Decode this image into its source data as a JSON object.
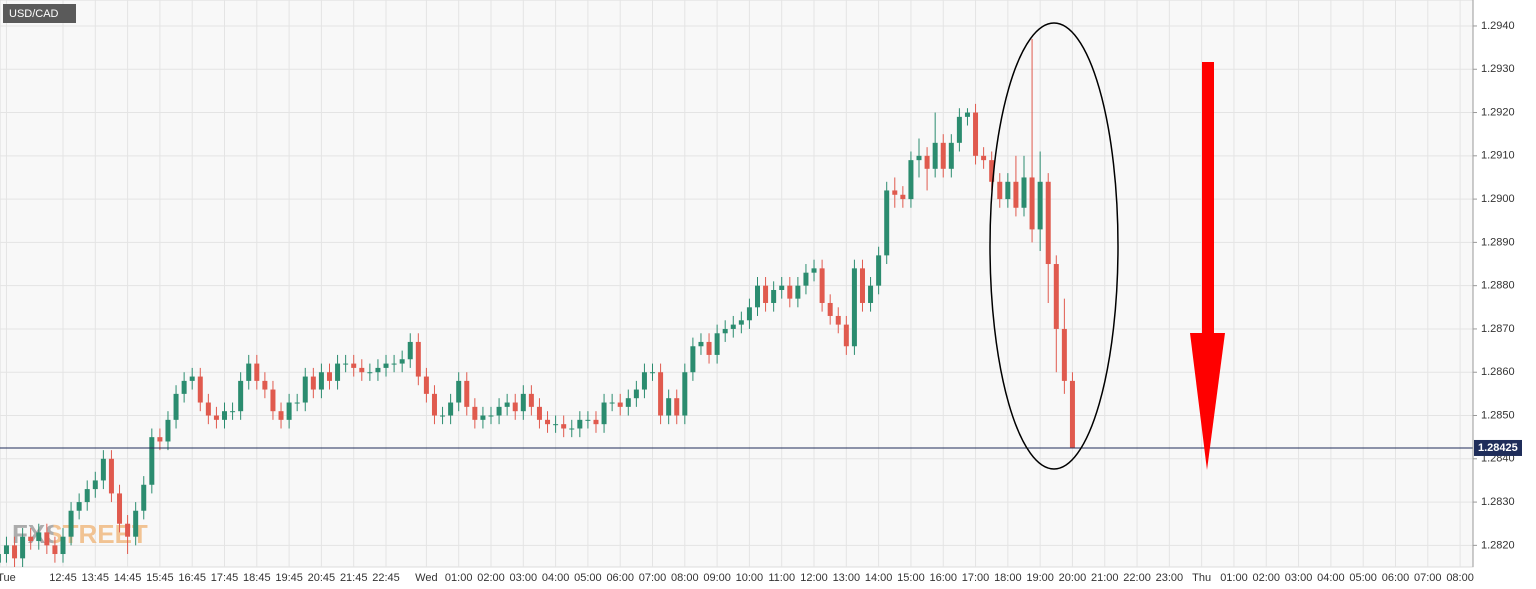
{
  "chart_data": {
    "type": "candlestick",
    "title": "USD/CAD",
    "watermark": "FXSTREET",
    "last_price": 1.28425,
    "up_color": "#2b8c6f",
    "down_color": "#e05a4e",
    "grid": true,
    "xlim": [
      -13.2,
      32.4
    ],
    "ylim": [
      1.2815,
      1.2946
    ],
    "yticks": [
      {
        "value": 1.282,
        "label": "1.2820"
      },
      {
        "value": 1.283,
        "label": "1.2830"
      },
      {
        "value": 1.284,
        "label": "1.2840"
      },
      {
        "value": 1.285,
        "label": "1.2850"
      },
      {
        "value": 1.286,
        "label": "1.2860"
      },
      {
        "value": 1.287,
        "label": "1.2870"
      },
      {
        "value": 1.288,
        "label": "1.2880"
      },
      {
        "value": 1.289,
        "label": "1.2890"
      },
      {
        "value": 1.29,
        "label": "1.2900"
      },
      {
        "value": 1.291,
        "label": "1.2910"
      },
      {
        "value": 1.292,
        "label": "1.2920"
      },
      {
        "value": 1.293,
        "label": "1.2930"
      },
      {
        "value": 1.294,
        "label": "1.2940"
      }
    ],
    "xticks": [
      {
        "value": -13,
        "label": "Tue"
      },
      {
        "value": -11.25,
        "label": "12:45"
      },
      {
        "value": -10.25,
        "label": "13:45"
      },
      {
        "value": -9.25,
        "label": "14:45"
      },
      {
        "value": -8.25,
        "label": "15:45"
      },
      {
        "value": -7.25,
        "label": "16:45"
      },
      {
        "value": -6.25,
        "label": "17:45"
      },
      {
        "value": -5.25,
        "label": "18:45"
      },
      {
        "value": -4.25,
        "label": "19:45"
      },
      {
        "value": -3.25,
        "label": "20:45"
      },
      {
        "value": -2.25,
        "label": "21:45"
      },
      {
        "value": -1.25,
        "label": "22:45"
      },
      {
        "value": 0,
        "label": "Wed"
      },
      {
        "value": 1,
        "label": "01:00"
      },
      {
        "value": 2,
        "label": "02:00"
      },
      {
        "value": 3,
        "label": "03:00"
      },
      {
        "value": 4,
        "label": "04:00"
      },
      {
        "value": 5,
        "label": "05:00"
      },
      {
        "value": 6,
        "label": "06:00"
      },
      {
        "value": 7,
        "label": "07:00"
      },
      {
        "value": 8,
        "label": "08:00"
      },
      {
        "value": 9,
        "label": "09:00"
      },
      {
        "value": 10,
        "label": "10:00"
      },
      {
        "value": 11,
        "label": "11:00"
      },
      {
        "value": 12,
        "label": "12:00"
      },
      {
        "value": 13,
        "label": "13:00"
      },
      {
        "value": 14,
        "label": "14:00"
      },
      {
        "value": 15,
        "label": "15:00"
      },
      {
        "value": 16,
        "label": "16:00"
      },
      {
        "value": 17,
        "label": "17:00"
      },
      {
        "value": 18,
        "label": "18:00"
      },
      {
        "value": 19,
        "label": "19:00"
      },
      {
        "value": 20,
        "label": "20:00"
      },
      {
        "value": 21,
        "label": "21:00"
      },
      {
        "value": 22,
        "label": "22:00"
      },
      {
        "value": 23,
        "label": "23:00"
      },
      {
        "value": 24,
        "label": "Thu"
      },
      {
        "value": 25,
        "label": "01:00"
      },
      {
        "value": 26,
        "label": "02:00"
      },
      {
        "value": 27,
        "label": "03:00"
      },
      {
        "value": 28,
        "label": "04:00"
      },
      {
        "value": 29,
        "label": "05:00"
      },
      {
        "value": 30,
        "label": "06:00"
      },
      {
        "value": 31,
        "label": "07:00"
      },
      {
        "value": 32,
        "label": "08:00"
      }
    ],
    "x": [
      -13.25,
      -13,
      -12.75,
      -12.5,
      -12.25,
      -12,
      -11.75,
      -11.5,
      -11.25,
      -11,
      -10.75,
      -10.5,
      -10.25,
      -10,
      -9.75,
      -9.5,
      -9.25,
      -9,
      -8.75,
      -8.5,
      -8.25,
      -8,
      -7.75,
      -7.5,
      -7.25,
      -7,
      -6.75,
      -6.5,
      -6.25,
      -6,
      -5.75,
      -5.5,
      -5.25,
      -5,
      -4.75,
      -4.5,
      -4.25,
      -4,
      -3.75,
      -3.5,
      -3.25,
      -3,
      -2.75,
      -2.5,
      -2.25,
      -2,
      -1.75,
      -1.5,
      -1.25,
      -1,
      -0.75,
      -0.5,
      -0.25,
      0,
      0.25,
      0.5,
      0.75,
      1,
      1.25,
      1.5,
      1.75,
      2,
      2.25,
      2.5,
      2.75,
      3,
      3.25,
      3.5,
      3.75,
      4,
      4.25,
      4.5,
      4.75,
      5,
      5.25,
      5.5,
      5.75,
      6,
      6.25,
      6.5,
      6.75,
      7,
      7.25,
      7.5,
      7.75,
      8,
      8.25,
      8.5,
      8.75,
      9,
      9.25,
      9.5,
      9.75,
      10,
      10.25,
      10.5,
      10.75,
      11,
      11.25,
      11.5,
      11.75,
      12,
      12.25,
      12.5,
      12.75,
      13,
      13.25,
      13.5,
      13.75,
      14,
      14.25,
      14.5,
      14.75,
      15,
      15.25,
      15.5,
      15.75,
      16,
      16.25,
      16.5,
      16.75,
      17,
      17.25,
      17.5,
      17.75,
      18,
      18.25,
      18.5,
      18.75,
      19,
      19.25,
      19.5,
      19.75,
      20
    ],
    "open": [
      1.2816,
      1.2818,
      1.282,
      1.2817,
      1.2822,
      1.2821,
      1.2823,
      1.282,
      1.2818,
      1.2822,
      1.2828,
      1.283,
      1.2833,
      1.2835,
      1.284,
      1.2832,
      1.2825,
      1.2822,
      1.2828,
      1.2834,
      1.2845,
      1.2844,
      1.2849,
      1.2855,
      1.2858,
      1.2859,
      1.2853,
      1.285,
      1.2849,
      1.2851,
      1.2851,
      1.2858,
      1.2862,
      1.2858,
      1.2856,
      1.2851,
      1.2849,
      1.2853,
      1.2853,
      1.2859,
      1.2856,
      1.286,
      1.2858,
      1.2862,
      1.2862,
      1.2861,
      1.286,
      1.286,
      1.2861,
      1.2862,
      1.2862,
      1.2863,
      1.2867,
      1.2859,
      1.2855,
      1.285,
      1.285,
      1.2853,
      1.2858,
      1.2852,
      1.2849,
      1.285,
      1.285,
      1.2852,
      1.2853,
      1.2851,
      1.2855,
      1.2852,
      1.2849,
      1.2848,
      1.2848,
      1.2847,
      1.2847,
      1.2849,
      1.2849,
      1.2848,
      1.2853,
      1.2853,
      1.2852,
      1.2854,
      1.2856,
      1.286,
      1.286,
      1.285,
      1.2854,
      1.285,
      1.286,
      1.2866,
      1.2867,
      1.2864,
      1.2869,
      1.287,
      1.2871,
      1.2872,
      1.2875,
      1.288,
      1.2876,
      1.2879,
      1.288,
      1.2877,
      1.288,
      1.2883,
      1.2884,
      1.2876,
      1.2873,
      1.2871,
      1.2866,
      1.2884,
      1.2876,
      1.288,
      1.2887,
      1.2902,
      1.2901,
      1.29,
      1.2909,
      1.291,
      1.2907,
      1.2913,
      1.2907,
      1.2913,
      1.2919,
      1.292,
      1.291,
      1.2909,
      1.2904,
      1.29,
      1.2904,
      1.2898,
      1.2905,
      1.2893,
      1.2904,
      1.2885,
      1.287,
      1.2858
    ],
    "high": [
      1.282,
      1.2822,
      1.2822,
      1.2824,
      1.2824,
      1.2825,
      1.2825,
      1.2822,
      1.2824,
      1.283,
      1.2832,
      1.2835,
      1.2837,
      1.2842,
      1.2842,
      1.2834,
      1.2827,
      1.283,
      1.2836,
      1.2847,
      1.2847,
      1.2851,
      1.2857,
      1.286,
      1.2861,
      1.2861,
      1.2855,
      1.2852,
      1.2853,
      1.2853,
      1.286,
      1.2864,
      1.2864,
      1.286,
      1.2858,
      1.2853,
      1.2855,
      1.2855,
      1.2861,
      1.2861,
      1.2862,
      1.2862,
      1.2864,
      1.2864,
      1.2864,
      1.2863,
      1.2862,
      1.2863,
      1.2864,
      1.2864,
      1.2865,
      1.2869,
      1.2869,
      1.2861,
      1.2857,
      1.2852,
      1.2855,
      1.286,
      1.286,
      1.2854,
      1.2852,
      1.2852,
      1.2854,
      1.2855,
      1.2855,
      1.2857,
      1.2857,
      1.2854,
      1.2851,
      1.285,
      1.285,
      1.2849,
      1.2851,
      1.2851,
      1.2851,
      1.2855,
      1.2855,
      1.2855,
      1.2856,
      1.2858,
      1.2862,
      1.2862,
      1.2862,
      1.2856,
      1.2856,
      1.2862,
      1.2868,
      1.2869,
      1.2869,
      1.2871,
      1.2872,
      1.2873,
      1.2874,
      1.2877,
      1.2882,
      1.2882,
      1.2881,
      1.2882,
      1.2882,
      1.2882,
      1.2885,
      1.2886,
      1.2886,
      1.2878,
      1.2875,
      1.2873,
      1.2886,
      1.2886,
      1.2882,
      1.2889,
      1.2904,
      1.2905,
      1.2903,
      1.2911,
      1.2914,
      1.2912,
      1.292,
      1.2915,
      1.2915,
      1.2921,
      1.2921,
      1.2922,
      1.2912,
      1.2911,
      1.2906,
      1.2906,
      1.291,
      1.291,
      1.2937,
      1.2911,
      1.2906,
      1.2887,
      1.2877,
      1.286
    ],
    "low": [
      1.2814,
      1.2816,
      1.2815,
      1.2815,
      1.2819,
      1.2819,
      1.2818,
      1.2816,
      1.2816,
      1.282,
      1.2826,
      1.2828,
      1.2831,
      1.2833,
      1.283,
      1.2823,
      1.2818,
      1.282,
      1.2826,
      1.2832,
      1.2842,
      1.2842,
      1.2847,
      1.2853,
      1.2856,
      1.2851,
      1.2848,
      1.2847,
      1.2847,
      1.2849,
      1.2849,
      1.2856,
      1.2856,
      1.2854,
      1.2849,
      1.2847,
      1.2847,
      1.2851,
      1.2851,
      1.2854,
      1.2854,
      1.2856,
      1.2856,
      1.286,
      1.2859,
      1.2858,
      1.2858,
      1.2858,
      1.2859,
      1.286,
      1.286,
      1.2861,
      1.2857,
      1.2853,
      1.2848,
      1.2848,
      1.2848,
      1.2851,
      1.285,
      1.2847,
      1.2847,
      1.2848,
      1.2848,
      1.285,
      1.2849,
      1.2849,
      1.285,
      1.2847,
      1.2846,
      1.2846,
      1.2845,
      1.2845,
      1.2845,
      1.2847,
      1.2846,
      1.2846,
      1.2851,
      1.285,
      1.285,
      1.2852,
      1.2854,
      1.2858,
      1.2848,
      1.2848,
      1.2848,
      1.2848,
      1.2858,
      1.2864,
      1.2862,
      1.2862,
      1.2867,
      1.2868,
      1.2869,
      1.287,
      1.2873,
      1.2874,
      1.2874,
      1.2877,
      1.2875,
      1.2875,
      1.2878,
      1.2881,
      1.2874,
      1.2871,
      1.2869,
      1.2864,
      1.2864,
      1.2874,
      1.2874,
      1.2878,
      1.2885,
      1.2898,
      1.2898,
      1.2898,
      1.2905,
      1.2902,
      1.2905,
      1.2905,
      1.2905,
      1.2911,
      1.2917,
      1.2908,
      1.2907,
      1.2902,
      1.2898,
      1.2898,
      1.2896,
      1.2896,
      1.289,
      1.2888,
      1.2876,
      1.286,
      1.2855,
      1.28425
    ],
    "close": [
      1.2818,
      1.282,
      1.2817,
      1.2822,
      1.2821,
      1.2823,
      1.282,
      1.2818,
      1.2822,
      1.2828,
      1.283,
      1.2833,
      1.2835,
      1.284,
      1.2832,
      1.2825,
      1.2822,
      1.2828,
      1.2834,
      1.2845,
      1.2844,
      1.2849,
      1.2855,
      1.2858,
      1.2859,
      1.2853,
      1.285,
      1.2849,
      1.2851,
      1.2851,
      1.2858,
      1.2862,
      1.2858,
      1.2856,
      1.2851,
      1.2849,
      1.2853,
      1.2853,
      1.2859,
      1.2856,
      1.286,
      1.2858,
      1.2862,
      1.2862,
      1.2861,
      1.286,
      1.286,
      1.2861,
      1.2862,
      1.2862,
      1.2863,
      1.2867,
      1.2859,
      1.2855,
      1.285,
      1.285,
      1.2853,
      1.2858,
      1.2852,
      1.2849,
      1.285,
      1.285,
      1.2852,
      1.2853,
      1.2851,
      1.2855,
      1.2852,
      1.2849,
      1.2848,
      1.2848,
      1.2847,
      1.2847,
      1.2849,
      1.2849,
      1.2848,
      1.2853,
      1.2853,
      1.2852,
      1.2854,
      1.2856,
      1.286,
      1.286,
      1.285,
      1.2854,
      1.285,
      1.286,
      1.2866,
      1.2867,
      1.2864,
      1.2869,
      1.287,
      1.2871,
      1.2872,
      1.2875,
      1.288,
      1.2876,
      1.2879,
      1.288,
      1.2877,
      1.288,
      1.2883,
      1.2884,
      1.2876,
      1.2873,
      1.2871,
      1.2866,
      1.2884,
      1.2876,
      1.288,
      1.2887,
      1.2902,
      1.2901,
      1.29,
      1.2909,
      1.291,
      1.2907,
      1.2913,
      1.2907,
      1.2913,
      1.2919,
      1.292,
      1.291,
      1.2909,
      1.2904,
      1.29,
      1.2904,
      1.2898,
      1.2905,
      1.2893,
      1.2904,
      1.2885,
      1.287,
      1.2858,
      1.28425
    ]
  }
}
